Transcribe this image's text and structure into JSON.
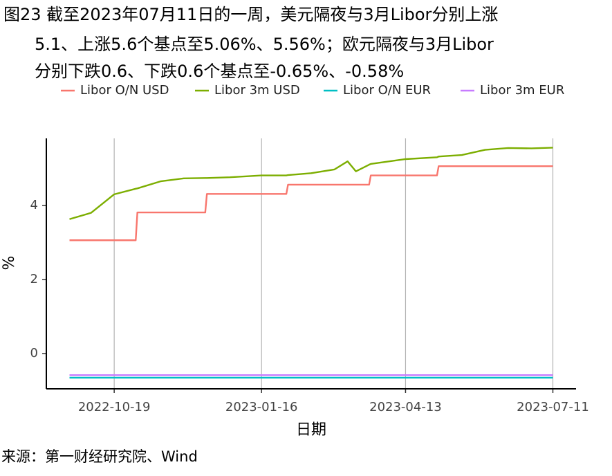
{
  "chart_data": {
    "type": "line",
    "title": [
      "图23  截至2023年07月11日的一周，美元隔夜与3月Libor分别上涨",
      "5.1、上涨5.6个基点至5.06%、5.56%；欧元隔夜与3月Libor",
      "分别下跌0.6、下跌0.6个基点至-0.65%、-0.58%"
    ],
    "x": [
      "2022-09-22",
      "2022-10-05",
      "2022-10-19",
      "2022-11-01",
      "2022-11-02",
      "2022-11-16",
      "2022-11-30",
      "2022-12-13",
      "2022-12-14",
      "2022-12-28",
      "2023-01-16",
      "2023-01-31",
      "2023-02-01",
      "2023-02-15",
      "2023-03-01",
      "2023-03-09",
      "2023-03-14",
      "2023-03-22",
      "2023-03-23",
      "2023-04-13",
      "2023-05-02",
      "2023-05-03",
      "2023-05-17",
      "2023-05-31",
      "2023-06-14",
      "2023-06-28",
      "2023-07-11"
    ],
    "series": [
      {
        "name": "Libor O/N USD",
        "color": "#F8766D",
        "values": [
          3.06,
          3.06,
          3.06,
          3.06,
          3.81,
          3.81,
          3.81,
          3.81,
          4.31,
          4.31,
          4.31,
          4.31,
          4.56,
          4.56,
          4.56,
          4.56,
          4.56,
          4.56,
          4.81,
          4.81,
          4.81,
          5.06,
          5.06,
          5.06,
          5.06,
          5.06,
          5.06
        ]
      },
      {
        "name": "Libor 3m USD",
        "color": "#7CAE00",
        "values": [
          3.63,
          3.8,
          4.3,
          4.45,
          4.46,
          4.65,
          4.73,
          4.74,
          4.74,
          4.76,
          4.81,
          4.81,
          4.82,
          4.87,
          4.97,
          5.19,
          4.92,
          5.1,
          5.12,
          5.25,
          5.3,
          5.32,
          5.36,
          5.5,
          5.55,
          5.54,
          5.56
        ]
      },
      {
        "name": "Libor O/N EUR",
        "color": "#00BFC4",
        "values": [
          -0.65,
          -0.65,
          -0.65,
          -0.65,
          -0.65,
          -0.65,
          -0.65,
          -0.65,
          -0.65,
          -0.65,
          -0.65,
          -0.65,
          -0.65,
          -0.65,
          -0.65,
          -0.65,
          -0.65,
          -0.65,
          -0.65,
          -0.65,
          -0.65,
          -0.65,
          -0.65,
          -0.65,
          -0.65,
          -0.65,
          -0.65
        ]
      },
      {
        "name": "Libor 3m EUR",
        "color": "#C77CFF",
        "values": [
          -0.58,
          -0.58,
          -0.58,
          -0.58,
          -0.58,
          -0.58,
          -0.58,
          -0.58,
          -0.58,
          -0.58,
          -0.58,
          -0.58,
          -0.58,
          -0.58,
          -0.58,
          -0.58,
          -0.58,
          -0.58,
          -0.58,
          -0.58,
          -0.58,
          -0.58,
          -0.58,
          -0.58,
          -0.58,
          -0.58,
          -0.58
        ]
      }
    ],
    "xlim": [
      "2022-09-08",
      "2023-07-25"
    ],
    "xticks": [
      "2022-10-19",
      "2023-01-16",
      "2023-04-13",
      "2023-07-11"
    ],
    "ylim": [
      -0.95,
      5.81
    ],
    "yticks": [
      0,
      2,
      4
    ],
    "x_label": "日期",
    "y_label": "%",
    "grid": "x",
    "legend": "top",
    "source": "来源：第一财经研究院、Wind"
  }
}
